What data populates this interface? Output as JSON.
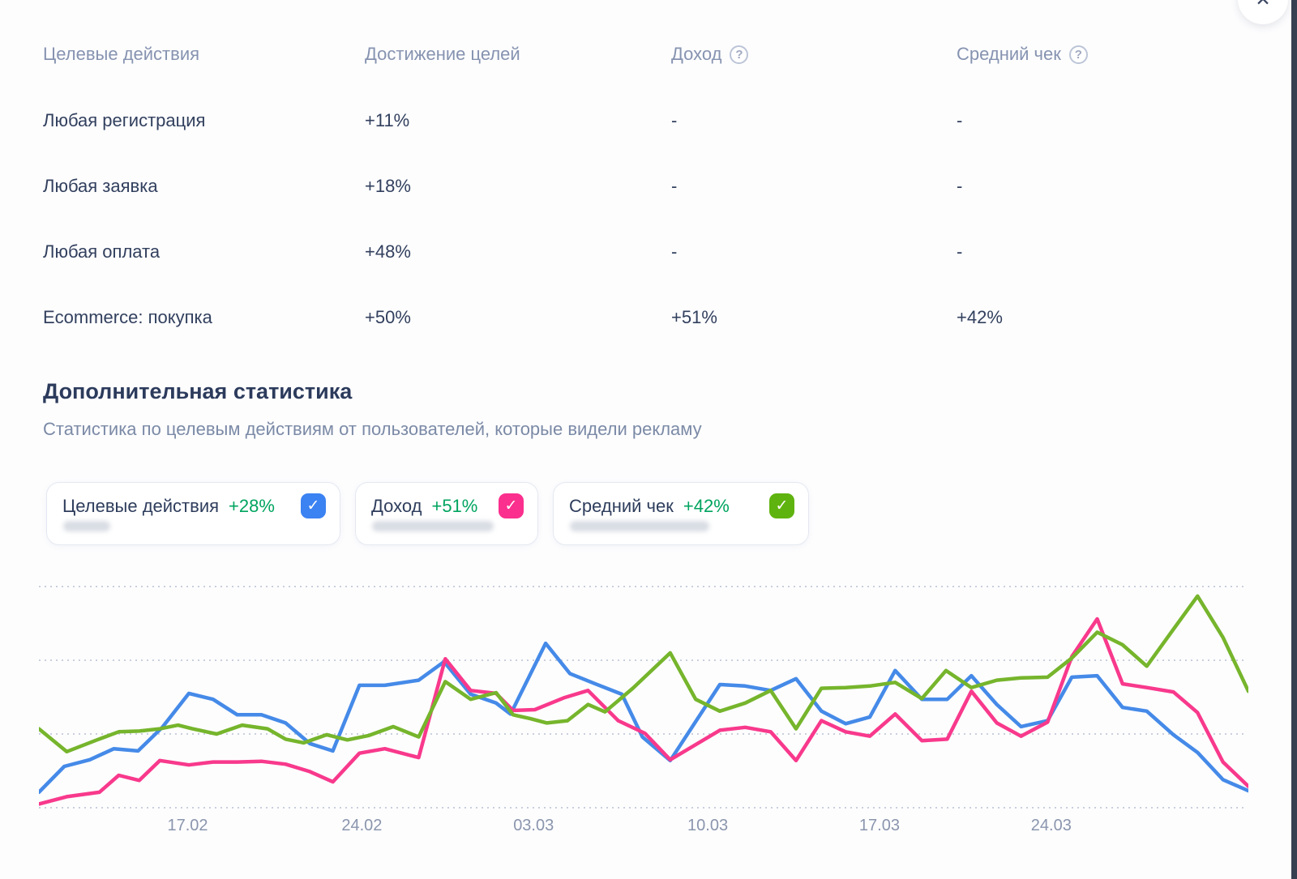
{
  "icons": {
    "close": "✕",
    "help": "?",
    "check": "✓"
  },
  "table": {
    "columns": [
      {
        "label": "Целевые действия",
        "has_help": false
      },
      {
        "label": "Достижение целей",
        "has_help": false
      },
      {
        "label": "Доход",
        "has_help": true
      },
      {
        "label": "Средний чек",
        "has_help": true
      }
    ],
    "rows": [
      {
        "name": "Любая регистрация",
        "goal": "+11%",
        "revenue": "-",
        "avg_check": "-"
      },
      {
        "name": "Любая заявка",
        "goal": "+18%",
        "revenue": "-",
        "avg_check": "-"
      },
      {
        "name": "Любая оплата",
        "goal": "+48%",
        "revenue": "-",
        "avg_check": "-"
      },
      {
        "name": "Ecommerce: покупка",
        "goal": "+50%",
        "revenue": "+51%",
        "avg_check": "+42%"
      }
    ]
  },
  "section": {
    "title": "Дополнительная статистика",
    "subtitle": "Статистика по целевым действиям от пользователей, которые видели рекламу"
  },
  "legend_cards": [
    {
      "label": "Целевые действия",
      "delta": "+28%",
      "checked": true,
      "checkbox_color": "#3b82f2"
    },
    {
      "label": "Доход",
      "delta": "+51%",
      "checked": true,
      "checkbox_color": "#fb2f8d"
    },
    {
      "label": "Средний чек",
      "delta": "+42%",
      "checked": true,
      "checkbox_color": "#5fb30e"
    }
  ],
  "colors": {
    "positive_green": "#00a45f",
    "text_dark": "#32405e",
    "text_muted": "#8693b0",
    "grid": "#c9cfdc",
    "edge_strip": "#364050"
  },
  "chart_data": {
    "type": "line",
    "title": "",
    "xlabel": "",
    "ylabel": "",
    "grid": "horizontal-dotted",
    "legend_position": "cards-above-chart",
    "y_axis": {
      "labels_visible": false,
      "unit": "relative gridline units (no axis labels shown)",
      "gridlines_units": [
        0,
        1,
        2,
        3
      ],
      "ylim": [
        0,
        3.26
      ]
    },
    "x_axis": {
      "tick_labels": [
        "17.02",
        "24.02",
        "03.03",
        "10.03",
        "17.03",
        "24.03"
      ],
      "tick_positions_pct": [
        12.3,
        26.7,
        40.9,
        55.3,
        69.5,
        83.7
      ]
    },
    "series": [
      {
        "name": "Целевые действия",
        "color": "#458ae8",
        "points": [
          [
            0,
            0.21
          ],
          [
            2.1,
            0.56
          ],
          [
            4.2,
            0.65
          ],
          [
            6.2,
            0.8
          ],
          [
            8.2,
            0.77
          ],
          [
            10.2,
            1.09
          ],
          [
            12.4,
            1.55
          ],
          [
            14.4,
            1.47
          ],
          [
            16.4,
            1.26
          ],
          [
            18.4,
            1.26
          ],
          [
            20.4,
            1.15
          ],
          [
            22.4,
            0.87
          ],
          [
            24.3,
            0.77
          ],
          [
            26.5,
            1.66
          ],
          [
            28.6,
            1.66
          ],
          [
            31.4,
            1.73
          ],
          [
            33.5,
            1.98
          ],
          [
            35.7,
            1.54
          ],
          [
            37.8,
            1.42
          ],
          [
            39,
            1.27
          ],
          [
            41.9,
            2.23
          ],
          [
            43.9,
            1.82
          ],
          [
            46,
            1.68
          ],
          [
            48.2,
            1.54
          ],
          [
            49.9,
            0.96
          ],
          [
            52.2,
            0.64
          ],
          [
            56.3,
            1.67
          ],
          [
            58.4,
            1.65
          ],
          [
            60.5,
            1.59
          ],
          [
            62.6,
            1.75
          ],
          [
            64.7,
            1.31
          ],
          [
            66.7,
            1.14
          ],
          [
            68.7,
            1.23
          ],
          [
            70.8,
            1.86
          ],
          [
            73,
            1.47
          ],
          [
            75.1,
            1.47
          ],
          [
            77.1,
            1.79
          ],
          [
            79.2,
            1.4
          ],
          [
            81.2,
            1.1
          ],
          [
            83.4,
            1.18
          ],
          [
            85.4,
            1.77
          ],
          [
            87.5,
            1.79
          ],
          [
            89.6,
            1.36
          ],
          [
            91.6,
            1.31
          ],
          [
            93.8,
            0.99
          ],
          [
            95.8,
            0.75
          ],
          [
            97.9,
            0.38
          ],
          [
            100,
            0.23
          ]
        ]
      },
      {
        "name": "Доход",
        "color": "#f8398c",
        "points": [
          [
            0,
            0.05
          ],
          [
            2.3,
            0.15
          ],
          [
            5,
            0.21
          ],
          [
            6.6,
            0.44
          ],
          [
            8.3,
            0.37
          ],
          [
            10,
            0.64
          ],
          [
            12.4,
            0.58
          ],
          [
            14.4,
            0.62
          ],
          [
            16.4,
            0.62
          ],
          [
            18.4,
            0.63
          ],
          [
            20.4,
            0.59
          ],
          [
            22.4,
            0.49
          ],
          [
            24.3,
            0.35
          ],
          [
            26.5,
            0.74
          ],
          [
            28.6,
            0.8
          ],
          [
            31.4,
            0.68
          ],
          [
            33.6,
            2.02
          ],
          [
            35.7,
            1.59
          ],
          [
            37.8,
            1.55
          ],
          [
            39.2,
            1.32
          ],
          [
            41,
            1.33
          ],
          [
            43.4,
            1.49
          ],
          [
            45.4,
            1.59
          ],
          [
            47.9,
            1.18
          ],
          [
            50.1,
            1.01
          ],
          [
            52.2,
            0.65
          ],
          [
            56.3,
            1.05
          ],
          [
            58.4,
            1.09
          ],
          [
            60.5,
            1.03
          ],
          [
            62.6,
            0.64
          ],
          [
            64.7,
            1.18
          ],
          [
            66.7,
            1.03
          ],
          [
            68.7,
            0.97
          ],
          [
            70.8,
            1.27
          ],
          [
            73,
            0.91
          ],
          [
            75.1,
            0.93
          ],
          [
            77.1,
            1.58
          ],
          [
            79.2,
            1.15
          ],
          [
            81.2,
            0.97
          ],
          [
            83.4,
            1.16
          ],
          [
            85.4,
            2.05
          ],
          [
            87.5,
            2.56
          ],
          [
            89.6,
            1.68
          ],
          [
            91.6,
            1.63
          ],
          [
            93.8,
            1.57
          ],
          [
            95.8,
            1.29
          ],
          [
            97.9,
            0.62
          ],
          [
            100,
            0.29
          ]
        ]
      },
      {
        "name": "Средний чек",
        "color": "#76b52c",
        "points": [
          [
            0,
            1.07
          ],
          [
            2.3,
            0.76
          ],
          [
            4.8,
            0.92
          ],
          [
            6.6,
            1.03
          ],
          [
            8.3,
            1.04
          ],
          [
            10,
            1.07
          ],
          [
            11.5,
            1.12
          ],
          [
            12.7,
            1.07
          ],
          [
            14.7,
            1.0
          ],
          [
            16.8,
            1.12
          ],
          [
            18.9,
            1.07
          ],
          [
            20.4,
            0.93
          ],
          [
            21.9,
            0.88
          ],
          [
            23.8,
            0.99
          ],
          [
            25.5,
            0.92
          ],
          [
            27.3,
            0.98
          ],
          [
            29.3,
            1.1
          ],
          [
            31.4,
            0.96
          ],
          [
            33.6,
            1.71
          ],
          [
            35.7,
            1.47
          ],
          [
            37.8,
            1.56
          ],
          [
            39.2,
            1.26
          ],
          [
            40.6,
            1.21
          ],
          [
            42,
            1.15
          ],
          [
            43.7,
            1.18
          ],
          [
            45.4,
            1.4
          ],
          [
            46.8,
            1.3
          ],
          [
            49.1,
            1.62
          ],
          [
            52.2,
            2.1
          ],
          [
            54.3,
            1.47
          ],
          [
            56.3,
            1.31
          ],
          [
            58.4,
            1.42
          ],
          [
            60.5,
            1.59
          ],
          [
            62.6,
            1.07
          ],
          [
            64.7,
            1.62
          ],
          [
            66.7,
            1.63
          ],
          [
            68.7,
            1.65
          ],
          [
            70.8,
            1.7
          ],
          [
            73,
            1.48
          ],
          [
            75,
            1.86
          ],
          [
            77.1,
            1.63
          ],
          [
            79.2,
            1.73
          ],
          [
            81.2,
            1.76
          ],
          [
            83.4,
            1.77
          ],
          [
            85.4,
            2.03
          ],
          [
            87.5,
            2.38
          ],
          [
            89.6,
            2.21
          ],
          [
            91.6,
            1.92
          ],
          [
            93.8,
            2.42
          ],
          [
            95.8,
            2.87
          ],
          [
            97.9,
            2.31
          ],
          [
            100,
            1.58
          ]
        ]
      }
    ]
  }
}
